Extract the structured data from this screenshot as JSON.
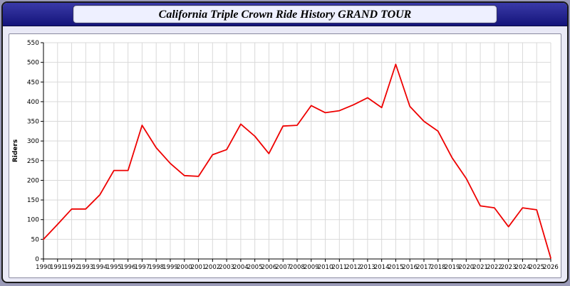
{
  "header": {
    "title": "California Triple Crown Ride History GRAND TOUR"
  },
  "chart_data": {
    "type": "line",
    "title": "California Triple Crown Ride History GRAND TOUR",
    "xlabel": "",
    "ylabel": "Riders",
    "ylim": [
      0,
      550
    ],
    "ytick_step": 50,
    "grid": true,
    "legend_position": "none",
    "line_color": "#ee0000",
    "grid_color": "#d9d9d9",
    "axis_color": "#000000",
    "categories": [
      1990,
      1991,
      1992,
      1993,
      1994,
      1995,
      1996,
      1997,
      1998,
      1999,
      2000,
      2001,
      2002,
      2003,
      2004,
      2005,
      2006,
      2007,
      2008,
      2009,
      2010,
      2011,
      2012,
      2013,
      2014,
      2015,
      2016,
      2017,
      2018,
      2019,
      2020,
      2021,
      2022,
      2023,
      2024,
      2025,
      2026
    ],
    "series": [
      {
        "name": "Riders",
        "values": [
          50,
          88,
          127,
          127,
          163,
          225,
          225,
          340,
          283,
          243,
          212,
          210,
          265,
          278,
          343,
          312,
          268,
          338,
          340,
          390,
          372,
          377,
          392,
          410,
          385,
          495,
          388,
          350,
          325,
          257,
          205,
          135,
          130,
          82,
          130,
          125,
          2
        ]
      }
    ]
  }
}
